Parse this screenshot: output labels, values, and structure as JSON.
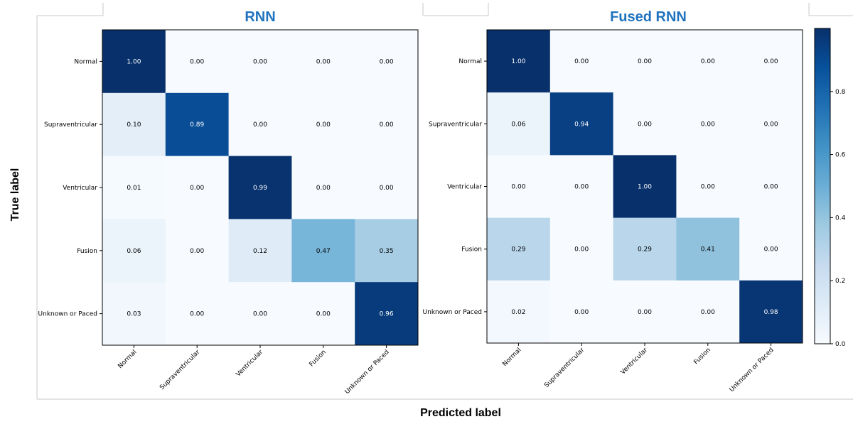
{
  "figure": {
    "xlabel": "Predicted label",
    "ylabel": "True label"
  },
  "colorbar": {
    "ticks": [
      "0.0",
      "0.2",
      "0.4",
      "0.6",
      "0.8"
    ],
    "tick_values": [
      0.0,
      0.2,
      0.4,
      0.6,
      0.8
    ],
    "range": [
      0.0,
      1.0
    ],
    "colormap": "Blues"
  },
  "colors": {
    "title": "#1f73be",
    "cmap_low": "#f7fbff",
    "cmap_high": "#08306b"
  },
  "chart_data": [
    {
      "type": "heatmap",
      "title": "RNN",
      "x_categories": [
        "Normal",
        "Supraventricular",
        "Ventricular",
        "Fusion",
        "Unknown or Paced"
      ],
      "y_categories": [
        "Normal",
        "Supraventricular",
        "Ventricular",
        "Fusion",
        "Unknown or Paced"
      ],
      "values": [
        [
          1.0,
          0.0,
          0.0,
          0.0,
          0.0
        ],
        [
          0.1,
          0.89,
          0.0,
          0.0,
          0.0
        ],
        [
          0.01,
          0.0,
          0.99,
          0.0,
          0.0
        ],
        [
          0.06,
          0.0,
          0.12,
          0.47,
          0.35
        ],
        [
          0.03,
          0.0,
          0.0,
          0.0,
          0.96
        ]
      ],
      "labels": [
        [
          "1.00",
          "0.00",
          "0.00",
          "0.00",
          "0.00"
        ],
        [
          "0.10",
          "0.89",
          "0.00",
          "0.00",
          "0.00"
        ],
        [
          "0.01",
          "0.00",
          "0.99",
          "0.00",
          "0.00"
        ],
        [
          "0.06",
          "0.00",
          "0.12",
          "0.47",
          "0.35"
        ],
        [
          "0.03",
          "0.00",
          "0.00",
          "0.00",
          "0.96"
        ]
      ]
    },
    {
      "type": "heatmap",
      "title": "Fused RNN",
      "x_categories": [
        "Normal",
        "Supraventricular",
        "Ventricular",
        "Fusion",
        "Unknown or Paced"
      ],
      "y_categories": [
        "Normal",
        "Supraventricular",
        "Ventricular",
        "Fusion",
        "Unknown or Paced"
      ],
      "values": [
        [
          1.0,
          0.0,
          0.0,
          0.0,
          0.0
        ],
        [
          0.06,
          0.94,
          0.0,
          0.0,
          0.0
        ],
        [
          0.0,
          0.0,
          1.0,
          0.0,
          0.0
        ],
        [
          0.29,
          0.0,
          0.29,
          0.41,
          0.0
        ],
        [
          0.02,
          0.0,
          0.0,
          0.0,
          0.98
        ]
      ],
      "labels": [
        [
          "1.00",
          "0.00",
          "0.00",
          "0.00",
          "0.00"
        ],
        [
          "0.06",
          "0.94",
          "0.00",
          "0.00",
          "0.00"
        ],
        [
          "0.00",
          "0.00",
          "1.00",
          "0.00",
          "0.00"
        ],
        [
          "0.29",
          "0.00",
          "0.29",
          "0.41",
          "0.00"
        ],
        [
          "0.02",
          "0.00",
          "0.00",
          "0.00",
          "0.98"
        ]
      ]
    }
  ]
}
